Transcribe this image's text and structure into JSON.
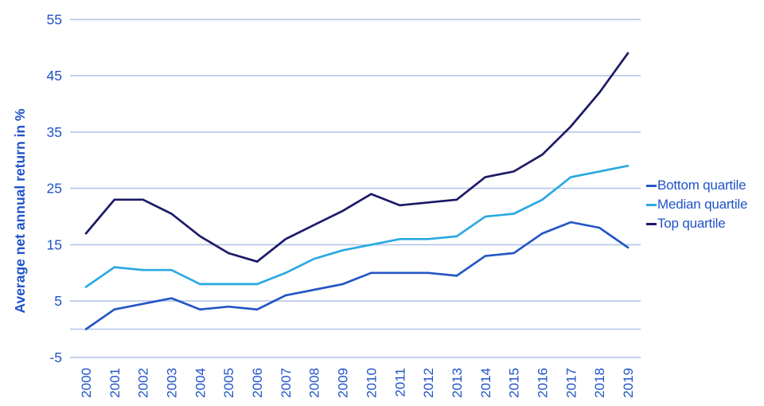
{
  "chart_data": {
    "type": "line",
    "title": "",
    "xlabel": "",
    "ylabel": "Average net annual return in %",
    "x": [
      2000,
      2001,
      2002,
      2003,
      2004,
      2005,
      2006,
      2007,
      2008,
      2009,
      2010,
      2011,
      2012,
      2013,
      2014,
      2015,
      2016,
      2017,
      2018,
      2019
    ],
    "ylim": [
      -5,
      55
    ],
    "yticks_labeled": [
      55,
      45,
      35,
      25,
      15,
      5,
      -5
    ],
    "gridline_values": [
      55,
      45,
      35,
      25,
      15,
      5,
      0,
      -5
    ],
    "grid": "horizontal-only",
    "legend_position": "right-middle",
    "series": [
      {
        "name": "Bottom quartile",
        "color": "#2456c4",
        "values": [
          0,
          3.5,
          4.5,
          5.5,
          3.5,
          4,
          3.5,
          6,
          7,
          8,
          10,
          10,
          10,
          9.5,
          13,
          13.5,
          17,
          19,
          18,
          14.5
        ]
      },
      {
        "name": "Median quartile",
        "color": "#29a9e2",
        "values": [
          7.5,
          11,
          10.5,
          10.5,
          8,
          8,
          8,
          10,
          12.5,
          14,
          15,
          16,
          16,
          16.5,
          20,
          20.5,
          23,
          27,
          28,
          29
        ]
      },
      {
        "name": "Top quartile",
        "color": "#1b1a66",
        "values": [
          17,
          23,
          23,
          20.5,
          16.5,
          13.5,
          12,
          16,
          18.5,
          21,
          24,
          22,
          22.5,
          23,
          27,
          28,
          31,
          36,
          42,
          49
        ]
      }
    ]
  },
  "colors": {
    "axis_text": "#2053c8",
    "gridline": "#b4c7e7",
    "background": "#ffffff"
  }
}
